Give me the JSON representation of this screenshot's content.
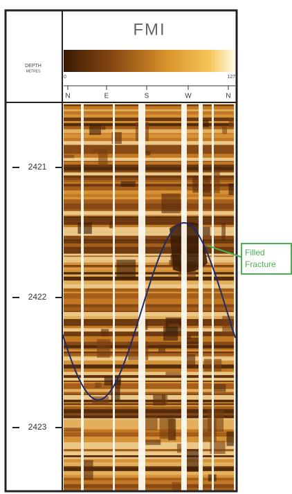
{
  "header": {
    "title": "FMI",
    "depth_label": [
      "DEPTH",
      "METRES"
    ],
    "scale_min": "0",
    "scale_max": "127"
  },
  "compass": [
    "N",
    "E",
    "S",
    "W",
    "N"
  ],
  "depths": [
    "2421",
    "2422",
    "2423"
  ],
  "annotation": [
    "Filled",
    "Fracture"
  ]
}
